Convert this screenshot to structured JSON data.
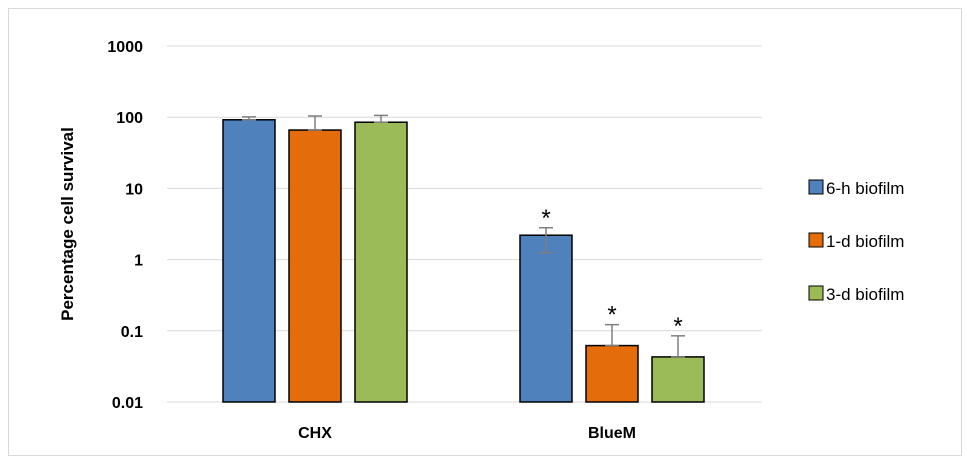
{
  "chart_data": {
    "type": "bar",
    "scale": "log",
    "ylabel": "Percentage cell survival",
    "xlabel": "",
    "ylim": [
      0.01,
      1000
    ],
    "yticks": [
      "1000",
      "100",
      "10",
      "1",
      "0.1",
      "0.01"
    ],
    "ytick_values": [
      1000,
      100,
      10,
      1,
      0.1,
      0.01
    ],
    "grid": true,
    "legend_position": "right",
    "categories": [
      "CHX",
      "BlueM"
    ],
    "series": [
      {
        "name": "6-h biofilm",
        "color": "#4f81bd",
        "values": [
          92,
          2.2
        ],
        "error_upper": [
          101,
          2.8
        ],
        "error_lower": [
          92,
          1.25
        ],
        "markers": [
          "",
          "*"
        ]
      },
      {
        "name": "1-d biofilm",
        "color": "#e46c0a",
        "values": [
          66,
          0.062
        ],
        "error_upper": [
          104,
          0.122
        ],
        "error_lower": [
          66,
          0.062
        ],
        "markers": [
          "",
          "*"
        ]
      },
      {
        "name": "3-d biofilm",
        "color": "#9bbb59",
        "values": [
          85,
          0.043
        ],
        "error_upper": [
          106,
          0.085
        ],
        "error_lower": [
          85,
          0.043
        ],
        "markers": [
          "",
          "*"
        ]
      }
    ]
  }
}
